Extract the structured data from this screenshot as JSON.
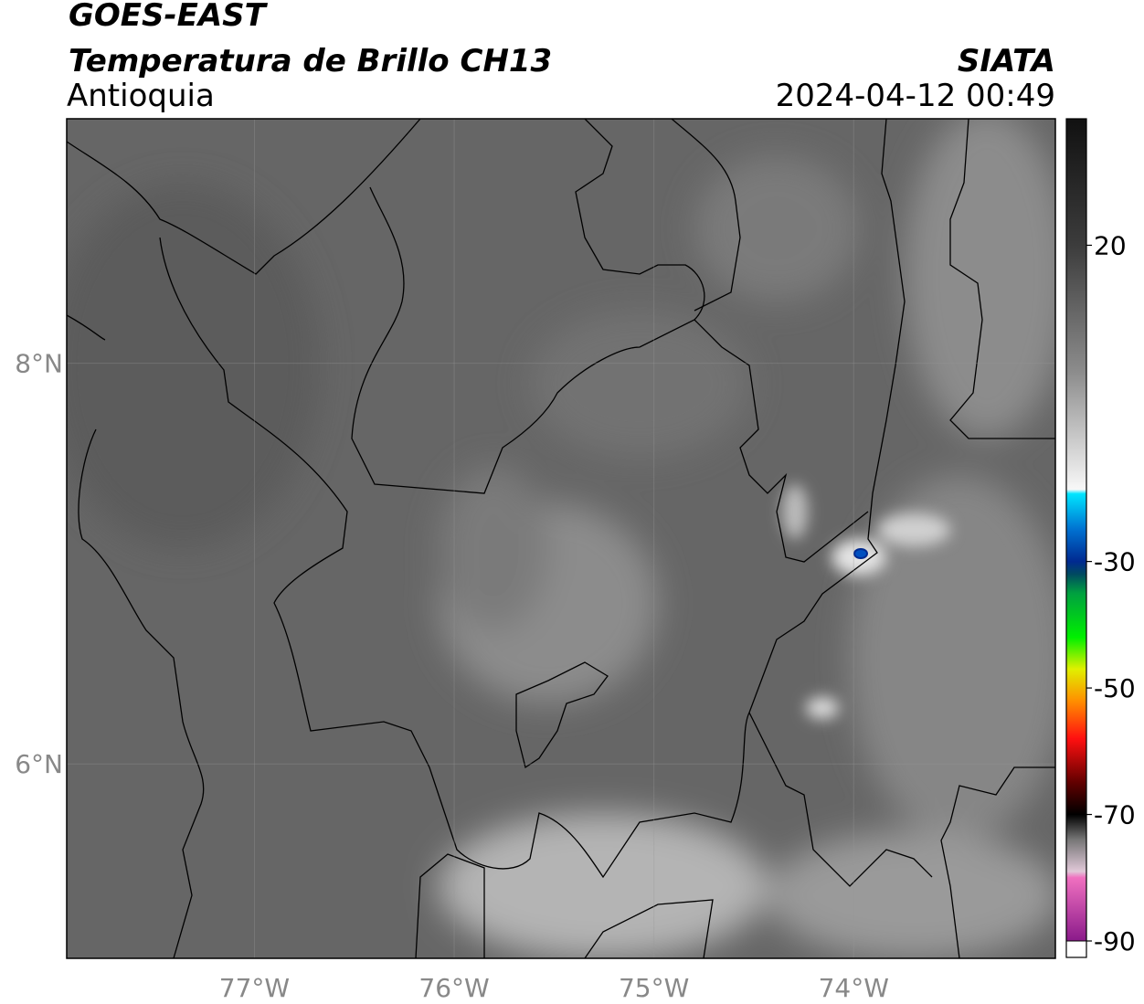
{
  "chart_data": {
    "type": "map",
    "title": "GOES-EAST",
    "subtitle": "Temperatura de Brillo CH13",
    "region": "Antioquia",
    "source": "SIATA",
    "datetime": "2024-04-12 00:49",
    "xlim": [
      -77.94,
      -72.99
    ],
    "ylim": [
      5.03,
      9.22
    ],
    "xticks": [
      {
        "value": -77,
        "label": "77°W"
      },
      {
        "value": -76,
        "label": "76°W"
      },
      {
        "value": -75,
        "label": "75°W"
      },
      {
        "value": -74,
        "label": "74°W"
      }
    ],
    "yticks": [
      {
        "value": 6,
        "label": "6°N"
      },
      {
        "value": 8,
        "label": "8°N"
      }
    ],
    "grid": true,
    "colorbar": {
      "clim": [
        -90,
        40
      ],
      "ticks": [
        20,
        -30,
        -50,
        -70,
        -90
      ],
      "under_color": "#ffffff",
      "stops": [
        {
          "value": 40,
          "color": "#111111"
        },
        {
          "value": 20,
          "color": "#3c3c3c"
        },
        {
          "value": 0,
          "color": "#8c8c8c"
        },
        {
          "value": -18.6,
          "color": "#f8f8f8"
        },
        {
          "value": -19.3,
          "color": "#00e5ff"
        },
        {
          "value": -25,
          "color": "#0070d0"
        },
        {
          "value": -30,
          "color": "#002a90"
        },
        {
          "value": -32,
          "color": "#004a60"
        },
        {
          "value": -35,
          "color": "#00a040"
        },
        {
          "value": -42,
          "color": "#00f000"
        },
        {
          "value": -47,
          "color": "#e0f000"
        },
        {
          "value": -52,
          "color": "#ff9000"
        },
        {
          "value": -58,
          "color": "#ff1010"
        },
        {
          "value": -65,
          "color": "#600000"
        },
        {
          "value": -70,
          "color": "#000000"
        },
        {
          "value": -74,
          "color": "#777777"
        },
        {
          "value": -79,
          "color": "#e0c8d8"
        },
        {
          "value": -80,
          "color": "#f070c0"
        },
        {
          "value": -90,
          "color": "#8a1a8a"
        }
      ]
    }
  }
}
